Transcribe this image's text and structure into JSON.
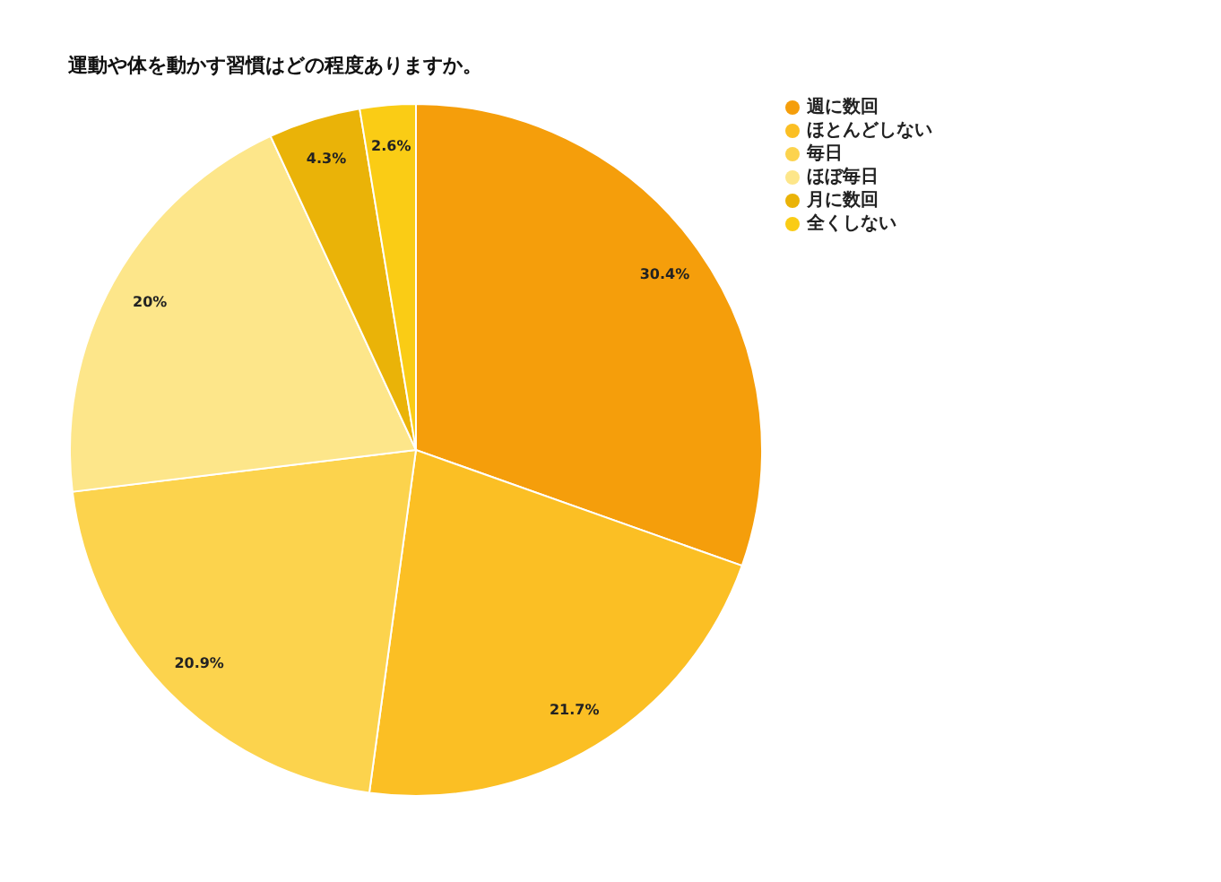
{
  "chart_data": {
    "type": "pie",
    "title": "運動や体を動かす習慣はどの程度ありますか。",
    "categories": [
      "週に数回",
      "ほとんどしない",
      "毎日",
      "ほぼ毎日",
      "月に数回",
      "全くしない"
    ],
    "values": [
      30.4,
      21.7,
      20.9,
      20,
      4.3,
      2.6
    ],
    "value_labels": [
      "30.4%",
      "21.7%",
      "20.9%",
      "20%",
      "4.3%",
      "2.6%"
    ],
    "colors": [
      "#f59e0b",
      "#fbbf24",
      "#fcd34d",
      "#fde68a",
      "#eab308",
      "#facc15"
    ],
    "legend": "top right"
  }
}
